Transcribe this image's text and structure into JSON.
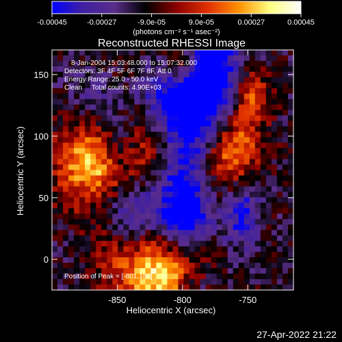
{
  "chart_data": {
    "type": "heatmap",
    "title": "Reconstructed RHESSI Image",
    "xlabel": "Heliocentric X (arcsec)",
    "ylabel": "Heliocentric Y (arcsec)",
    "xlim": [
      -900,
      -715
    ],
    "ylim": [
      -25,
      170
    ],
    "x_ticks": [
      "-850",
      "-800",
      "-750"
    ],
    "x_tick_values": [
      -850,
      -800,
      -750
    ],
    "y_ticks": [
      "0",
      "50",
      "100",
      "150"
    ],
    "y_tick_values": [
      0,
      50,
      100,
      150
    ],
    "colorbar": {
      "label": "(photons cm⁻² s⁻¹ asec⁻²)",
      "range": [
        -0.00045,
        0.00045
      ],
      "ticks": [
        "-0.00045",
        "-0.00027",
        "-9.0e-05",
        "9.0e-05",
        "0.00027",
        "0.00045"
      ],
      "tick_values": [
        -0.00045,
        -0.00027,
        -9e-05,
        9e-05,
        0.00027,
        0.00045
      ],
      "colormap": [
        "#0000ff",
        "#4020a0",
        "#5a2d8c",
        "#000000",
        "#8b0000",
        "#e03000",
        "#ff9000",
        "#ffff80",
        "#ffffff"
      ]
    },
    "annotations": [
      "8-Jan-2004 15:03:48.000 to 15:07:32.000",
      "Detectors: 3F 4F 5F 6F 7F 8F, Att 0",
      "Energy Range: 25.0 - 50.0 keV",
      "Clean     Total counts: 4.90E+03"
    ],
    "peak_label": "Position of Peak = [-801,159]",
    "peak": [
      -801,
      159
    ],
    "grid": false
  },
  "footer": {
    "timestamp": "27-Apr-2022 21:22"
  }
}
